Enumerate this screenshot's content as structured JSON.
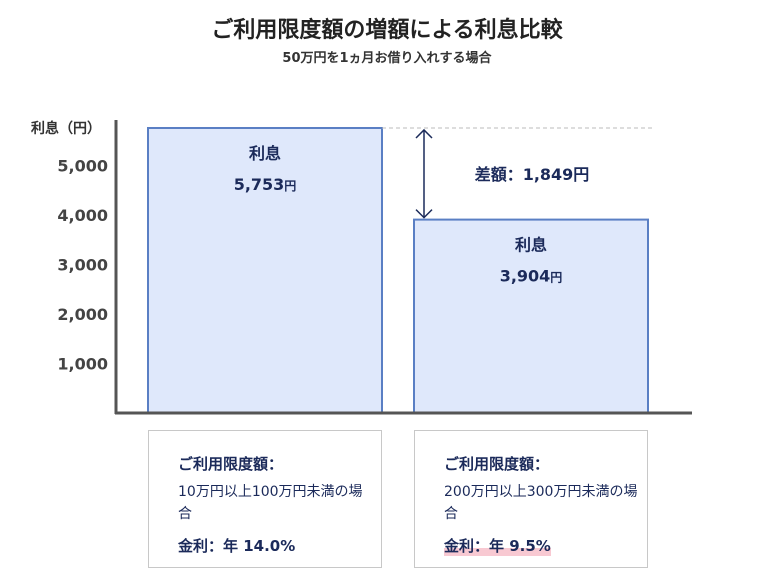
{
  "title": "ご利用限度額の増額による利息比較",
  "subtitle": "50万円を1ヵ月お借り入れする場合",
  "chart_data": {
    "type": "bar",
    "title": "ご利用限度額の増額による利息比較",
    "subtitle": "50万円を1ヵ月お借り入れする場合",
    "ylabel": "利息（円）",
    "ylim": [
      0,
      6000
    ],
    "yticks": [
      1000,
      2000,
      3000,
      4000,
      5000
    ],
    "ytick_labels": [
      "1,000",
      "2,000",
      "3,000",
      "4,000",
      "5,000"
    ],
    "bar_caption": "利息",
    "categories": [
      "10万円以上100万円未満の場合",
      "200万円以上300万円未満の場合"
    ],
    "values": [
      5753,
      3904
    ],
    "value_labels": [
      "5,753",
      "3,904"
    ],
    "unit": "円",
    "difference_label": "差額：1,849円",
    "grid": false,
    "colors": {
      "bar_fill": "#dfe8fb",
      "bar_stroke": "#5a7fc4",
      "axis": "#555555",
      "text": "#1b2a5a",
      "highlight": "#f8c9d2"
    }
  },
  "cards": [
    {
      "caption": "ご利用限度額：",
      "condition": "10万円以上100万円未満の場合",
      "rate": "金利：年 14.0%"
    },
    {
      "caption": "ご利用限度額：",
      "condition": "200万円以上300万円未満の場合",
      "rate": "金利：年 9.5%"
    }
  ]
}
